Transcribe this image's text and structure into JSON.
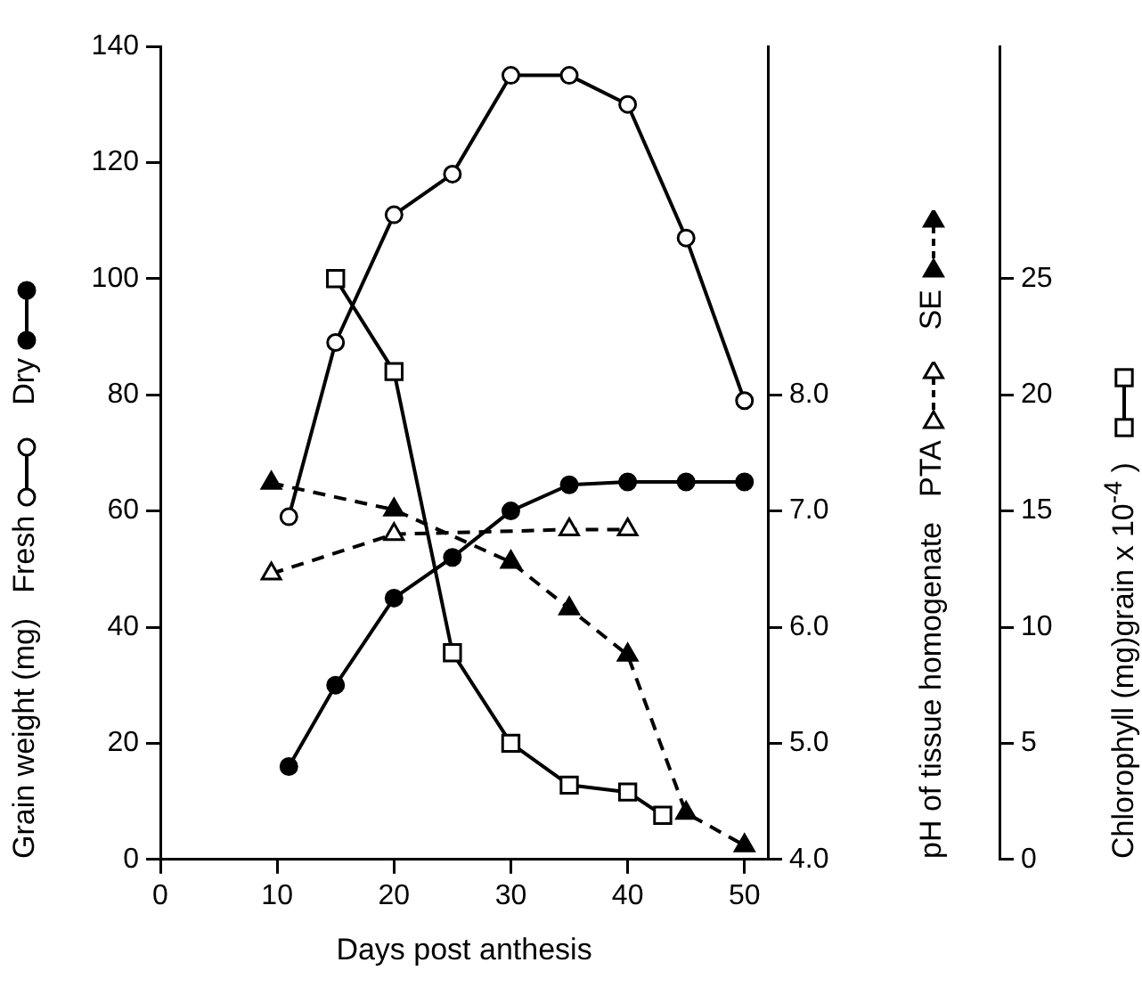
{
  "chart_data": {
    "type": "line",
    "xlabel": "Days post anthesis",
    "ylabel": "Grain weight  (mg)",
    "y2label": "pH of tissue homogenate",
    "y3label": "Chlorophyll (mg)grain x 10$^{-4}$ )",
    "xlim": [
      0,
      52
    ],
    "xticks": [
      0,
      10,
      20,
      30,
      40,
      50
    ],
    "ylim": [
      0,
      140
    ],
    "yticks": [
      0,
      20,
      40,
      60,
      80,
      100,
      120,
      140
    ],
    "y2lim": [
      4,
      11
    ],
    "y2ticks": [
      {
        "value": 4,
        "label": "4.0"
      },
      {
        "value": 5,
        "label": "5.0"
      },
      {
        "value": 6,
        "label": "6.0"
      },
      {
        "value": 7,
        "label": "7.0"
      },
      {
        "value": 8,
        "label": "8.0"
      }
    ],
    "y3lim": [
      0,
      35
    ],
    "y3ticks": [
      0,
      5,
      10,
      15,
      20,
      25
    ],
    "grid": false,
    "legend": "left",
    "series": [
      {
        "name": "Fresh",
        "color": "#000000",
        "marker": "circle",
        "line_style": "solid",
        "x": [
          11,
          15,
          20,
          25,
          30,
          35,
          40,
          45,
          50
        ],
        "values": [
          59,
          89,
          111,
          118,
          135,
          135,
          130,
          107,
          79
        ]
      },
      {
        "name": "Dry",
        "color": "#000000",
        "marker": "circle",
        "line_style": "solid",
        "x": [
          11,
          15,
          20,
          25,
          30,
          35,
          40,
          45,
          50
        ],
        "values": [
          16,
          30,
          45,
          52,
          60,
          64.5,
          65,
          65,
          65
        ]
      },
      {
        "name": "PTA",
        "color": "#000000",
        "marker": "triangle",
        "line_style": "dashed",
        "axis": "y2",
        "x": [
          9.5,
          20,
          35,
          40
        ],
        "values": [
          6.46,
          6.8,
          6.84,
          6.84
        ]
      },
      {
        "name": "SE",
        "color": "#000000",
        "marker": "triangle",
        "line_style": "dashed",
        "axis": "y2",
        "x": [
          9.5,
          20,
          30,
          35,
          40,
          45,
          50
        ],
        "values": [
          7.24,
          7.01,
          6.56,
          6.16,
          5.76,
          4.4,
          4.12
        ]
      },
      {
        "color": "#000000",
        "marker": "square",
        "line_style": "solid",
        "axis": "y3",
        "x": [
          15,
          20,
          25,
          30,
          35,
          40,
          43
        ],
        "values": [
          25,
          21,
          8.9,
          5,
          3.2,
          2.9,
          1.9
        ]
      }
    ]
  }
}
